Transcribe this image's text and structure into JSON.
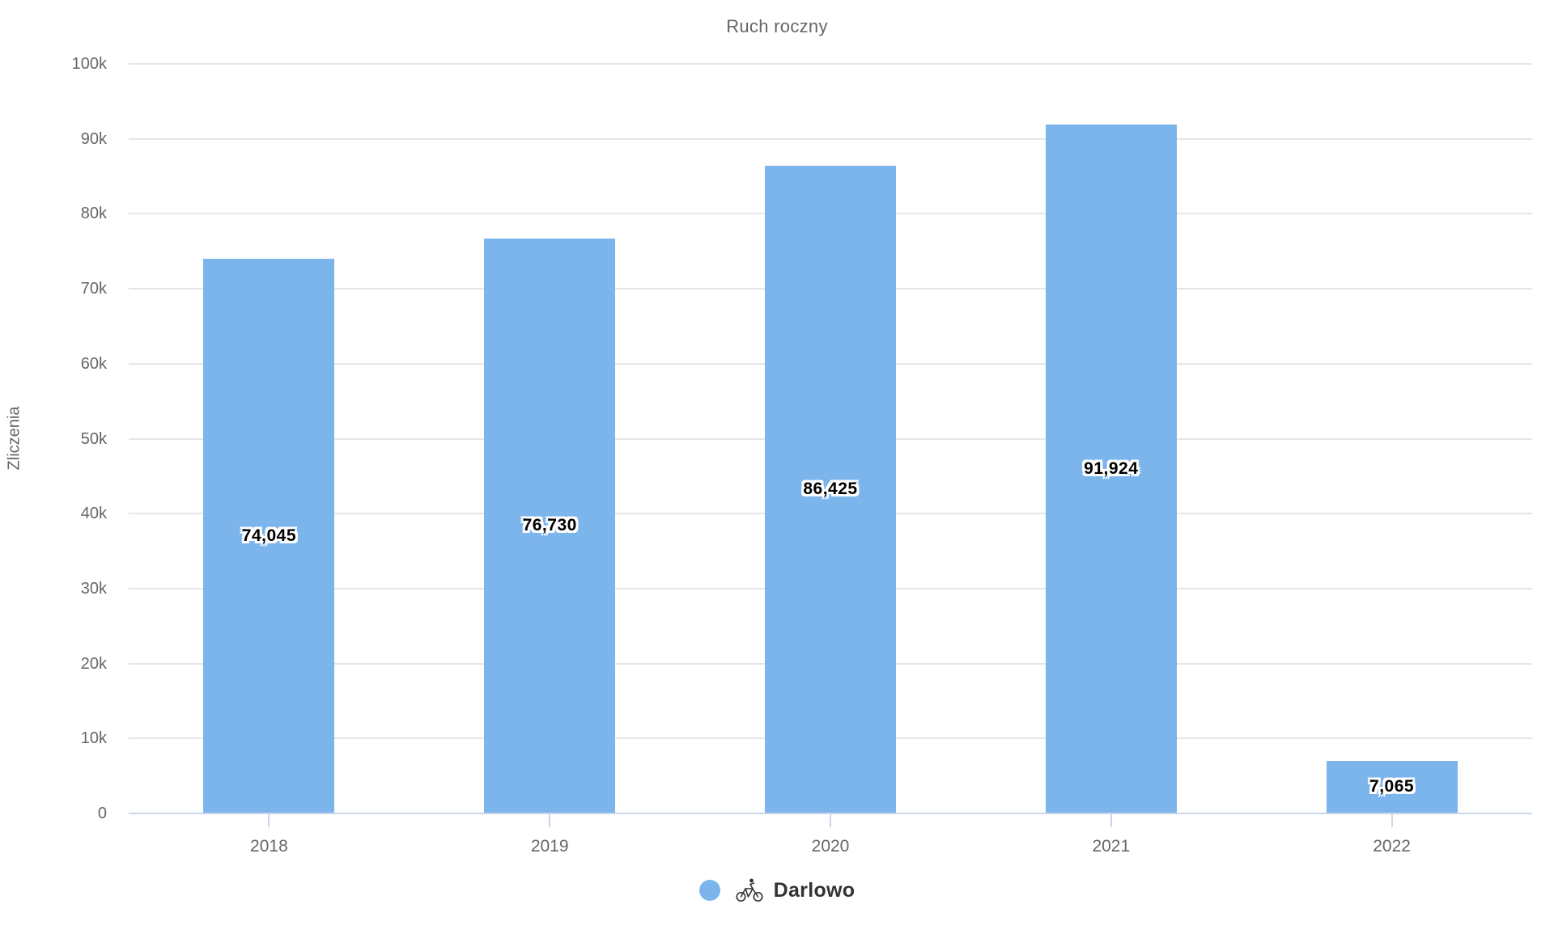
{
  "chart_data": {
    "type": "bar",
    "title": "Ruch roczny",
    "xlabel": "",
    "ylabel": "Zliczenia",
    "categories": [
      "2018",
      "2019",
      "2020",
      "2021",
      "2022"
    ],
    "series": [
      {
        "name": "Darlowo",
        "values": [
          74045,
          76730,
          86425,
          91924,
          7065
        ],
        "value_labels": [
          "74,045",
          "76,730",
          "86,425",
          "91,924",
          "7,065"
        ],
        "color": "#7cb5ec",
        "legend_icon": "bicycle-icon"
      }
    ],
    "ylim": [
      0,
      100000
    ],
    "yticks": [
      {
        "value": 0,
        "label": "0"
      },
      {
        "value": 10000,
        "label": "10k"
      },
      {
        "value": 20000,
        "label": "20k"
      },
      {
        "value": 30000,
        "label": "30k"
      },
      {
        "value": 40000,
        "label": "40k"
      },
      {
        "value": 50000,
        "label": "50k"
      },
      {
        "value": 60000,
        "label": "60k"
      },
      {
        "value": 70000,
        "label": "70k"
      },
      {
        "value": 80000,
        "label": "80k"
      },
      {
        "value": 90000,
        "label": "90k"
      },
      {
        "value": 100000,
        "label": "100k"
      }
    ],
    "grid": true,
    "legend_position": "bottom"
  },
  "colors": {
    "bar": "#7cb5ec",
    "gridline": "#e6e6e6",
    "axis_line": "#ccd6eb",
    "tick_text": "#666666",
    "title_text": "#666666",
    "value_label_text": "#000000",
    "legend_text": "#333333",
    "background": "#ffffff"
  }
}
